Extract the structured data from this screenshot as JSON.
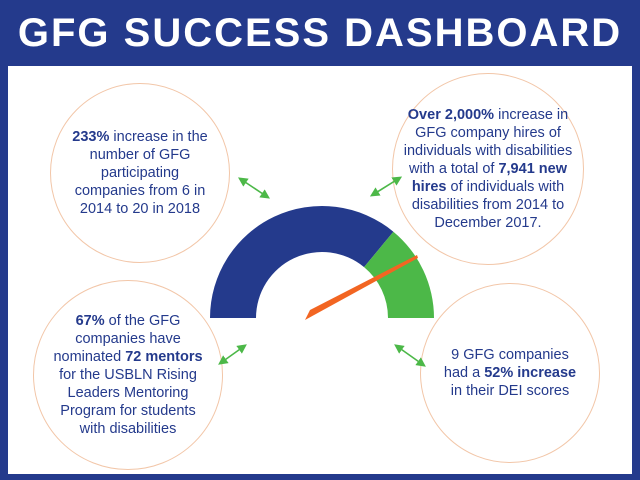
{
  "title": "GFG SUCCESS DASHBOARD",
  "colors": {
    "navy": "#243a8c",
    "green": "#4cb848",
    "orange": "#f26522",
    "bubble_border": "#f2c6a8",
    "arrow": "#4cb848"
  },
  "gauge": {
    "segments": [
      {
        "name": "navy-arc",
        "color": "#243a8c",
        "fraction": 0.72
      },
      {
        "name": "green-arc",
        "color": "#4cb848",
        "fraction": 0.28
      }
    ],
    "needle_color": "#f26522"
  },
  "stats": {
    "companies_increase": {
      "highlight": "233%",
      "text": " increase in the number of GFG participating companies from 6 in 2014 to 20 in 2018"
    },
    "hires_increase": {
      "lead": "Over ",
      "highlight": "2,000%",
      "mid": " increase in GFG company hires of individuals with disabilities with a total of ",
      "highlight2": "7,941 new hires",
      "tail": " of individuals with disabilities from 2014 to December 2017."
    },
    "mentors": {
      "highlight": "67%",
      "mid": " of the GFG companies have nominated ",
      "highlight2": "72 mentors",
      "tail": " for the USBLN Rising Leaders Mentoring Program for students with disabilities"
    },
    "dei": {
      "lead": "9 GFG companies had a ",
      "highlight": "52% increase",
      "tail": " in their DEI scores"
    }
  },
  "icons": [
    "double-arrow-icon"
  ]
}
